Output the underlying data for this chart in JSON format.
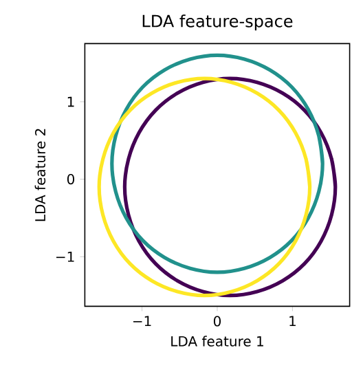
{
  "chart_data": {
    "type": "line",
    "title": "LDA feature-space",
    "xlabel": "LDA feature 1",
    "ylabel": "LDA feature 2",
    "xlim": [
      -1.76,
      1.76
    ],
    "ylim": [
      -1.64,
      1.75
    ],
    "xticks": [
      {
        "value": -1,
        "label": "−1"
      },
      0,
      1
    ],
    "yticks": [
      {
        "value": -1,
        "label": "−1"
      },
      0,
      1
    ],
    "grid": false,
    "marker": "none",
    "line_style": "solid",
    "series": [
      {
        "color": "#440154",
        "x": [
          1.57,
          1.52,
          1.38,
          1.16,
          0.87,
          0.53,
          0.17,
          -0.19,
          -0.53,
          -0.82,
          -1.04,
          -1.18,
          -1.23,
          -1.18,
          -1.04,
          -0.82,
          -0.53,
          -0.19,
          0.17,
          0.53,
          0.87,
          1.16,
          1.38,
          1.52,
          1.57,
          1.52
        ],
        "values": [
          -0.1,
          0.26,
          0.6,
          0.89,
          1.11,
          1.25,
          1.3,
          1.25,
          1.11,
          0.89,
          0.6,
          0.26,
          -0.1,
          -0.46,
          -0.8,
          -1.09,
          -1.31,
          -1.45,
          -1.5,
          -1.45,
          -1.31,
          -1.09,
          -0.8,
          -0.46,
          -0.1,
          0.26
        ]
      },
      {
        "color": "#21918c",
        "x": [
          1.4,
          1.35,
          1.21,
          0.99,
          0.7,
          0.36,
          0,
          -0.36,
          -0.7,
          -0.99,
          -1.21,
          -1.35,
          -1.4,
          -1.35,
          -1.21,
          -0.99,
          -0.7,
          -0.36,
          0,
          0.36,
          0.7,
          0.99,
          1.21,
          1.35,
          1.4,
          1.35
        ],
        "values": [
          0.2,
          0.56,
          0.9,
          1.19,
          1.41,
          1.55,
          1.6,
          1.55,
          1.41,
          1.19,
          0.9,
          0.56,
          0.2,
          -0.16,
          -0.5,
          -0.79,
          -1.01,
          -1.15,
          -1.2,
          -1.15,
          -1.01,
          -0.79,
          -0.5,
          -0.16,
          0.2,
          0.56
        ]
      },
      {
        "color": "#fde725",
        "x": [
          1.23,
          1.18,
          1.04,
          0.82,
          0.53,
          0.19,
          -0.17,
          -0.53,
          -0.87,
          -1.16,
          -1.38,
          -1.52,
          -1.57,
          -1.52,
          -1.38,
          -1.16,
          -0.87,
          -0.53,
          -0.17,
          0.19,
          0.53,
          0.82,
          1.04,
          1.18,
          1.23,
          1.18
        ],
        "values": [
          -0.1,
          0.26,
          0.6,
          0.89,
          1.11,
          1.25,
          1.3,
          1.25,
          1.11,
          0.89,
          0.6,
          0.26,
          -0.1,
          -0.46,
          -0.8,
          -1.09,
          -1.31,
          -1.45,
          -1.5,
          -1.45,
          -1.31,
          -1.09,
          -0.8,
          -0.46,
          -0.1,
          0.26
        ]
      }
    ]
  }
}
